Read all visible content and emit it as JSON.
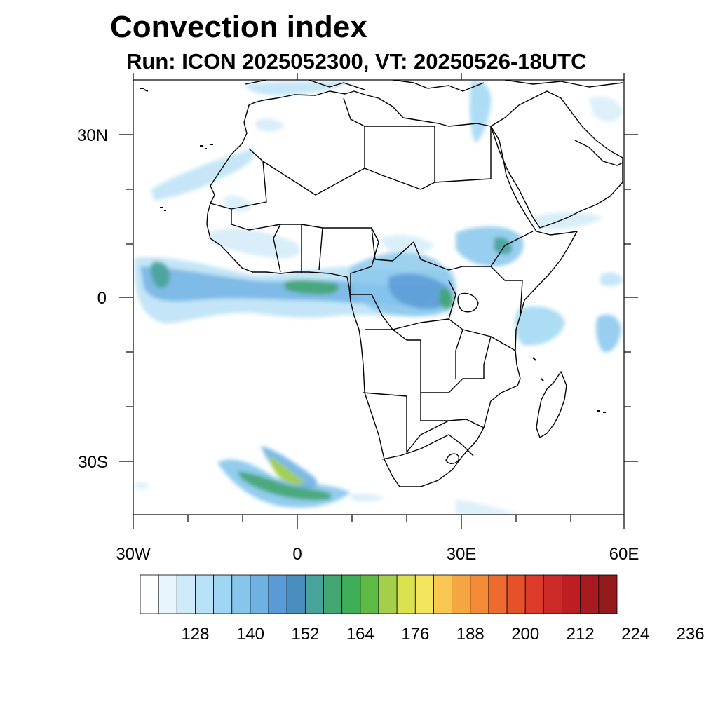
{
  "title": "Convection index",
  "subtitle": "Run: ICON 2025052300,  VT: 20250526-18UTC",
  "map": {
    "region": "Africa",
    "lon_range": [
      -30,
      60
    ],
    "lat_range": [
      -40,
      40
    ],
    "x_ticks": [
      {
        "lon": -30,
        "label": "30W"
      },
      {
        "lon": 0,
        "label": "0"
      },
      {
        "lon": 30,
        "label": "30E"
      },
      {
        "lon": 60,
        "label": "60E"
      }
    ],
    "y_ticks": [
      {
        "lat": 30,
        "label": "30N"
      },
      {
        "lat": 0,
        "label": "0"
      },
      {
        "lat": -30,
        "label": "30S"
      }
    ]
  },
  "colorbar": {
    "colors": [
      "#ffffff",
      "#e8f5fc",
      "#cfeaf8",
      "#b8e0f6",
      "#9fd6f3",
      "#86c6ec",
      "#6fb1e2",
      "#5a9bd6",
      "#4a8dbf",
      "#48a39a",
      "#43a572",
      "#3eaf58",
      "#5cba45",
      "#a5cf4a",
      "#dce24f",
      "#f3e55e",
      "#f8c652",
      "#f6a640",
      "#f38a36",
      "#ee6a2e",
      "#e6512a",
      "#dd3a29",
      "#cc2929",
      "#bd1e23",
      "#a81a1f",
      "#941a1c"
    ],
    "labels": [
      "128",
      "140",
      "152",
      "164",
      "176",
      "188",
      "200",
      "212",
      "224",
      "236"
    ]
  }
}
